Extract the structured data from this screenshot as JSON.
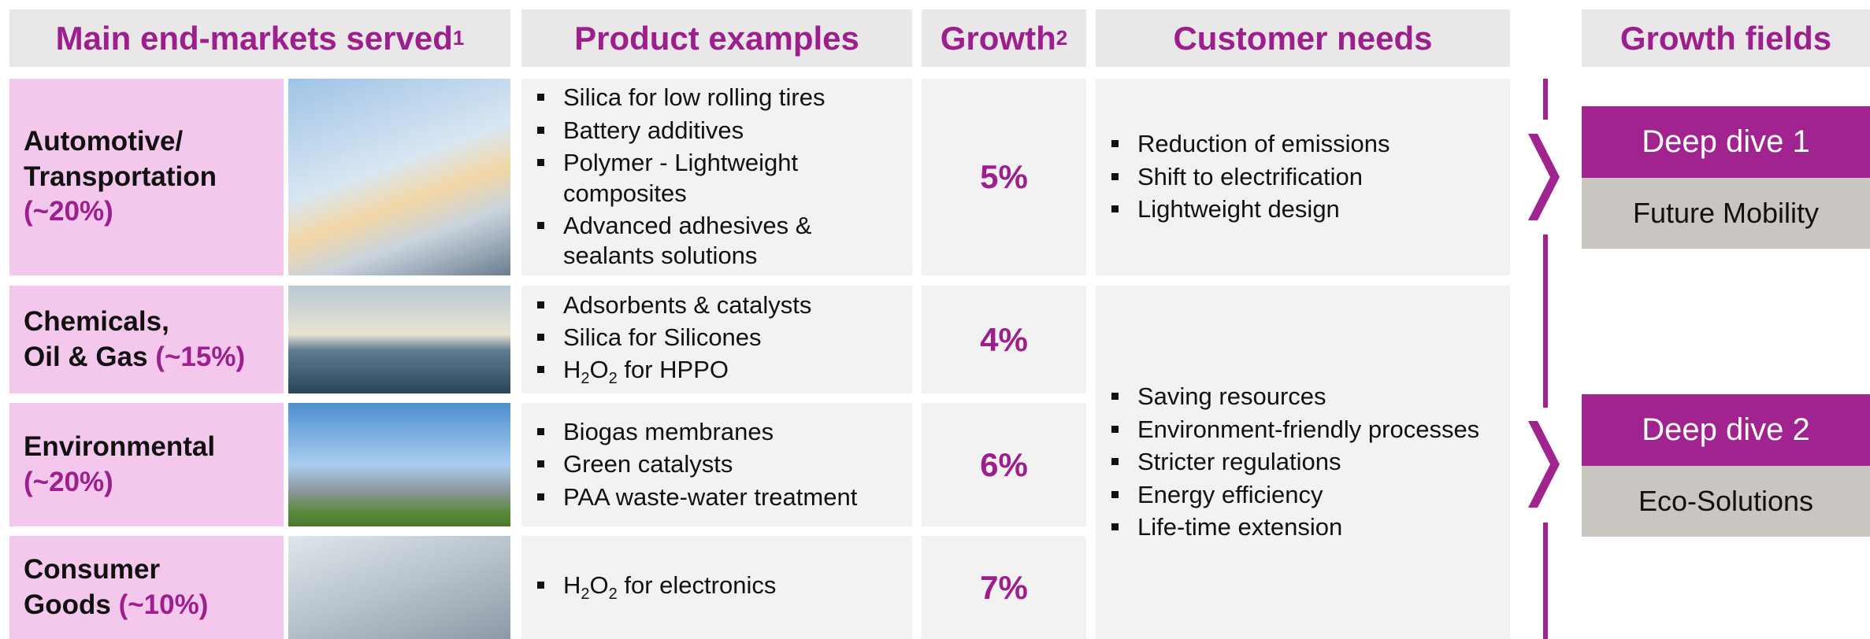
{
  "header": [
    {
      "text": "Main end-markets served",
      "sup": "1"
    },
    {
      "text": "Product examples"
    },
    {
      "text": "Growth",
      "sup": "2"
    },
    {
      "text": "Customer needs"
    },
    {
      "text": "Growth fields"
    }
  ],
  "rows": [
    {
      "name": [
        "Automotive/",
        "Transportation"
      ],
      "share": "(~20%)",
      "share_newline": true,
      "products": [
        [
          {
            "text": "Silica for low rolling tires"
          }
        ],
        [
          {
            "text": "Battery additives"
          }
        ],
        [
          {
            "text": "Polymer - Lightweight composites"
          }
        ],
        [
          {
            "text": "Advanced adhesives & sealants solutions"
          }
        ]
      ],
      "growth": "5%"
    },
    {
      "name": [
        "Chemicals,",
        "Oil & Gas"
      ],
      "share": "(~15%)",
      "share_newline": false,
      "products": [
        [
          {
            "text": "Adsorbents & catalysts"
          }
        ],
        [
          {
            "text": "Silica for Silicones"
          }
        ],
        [
          {
            "text": "H"
          },
          {
            "text": "2",
            "sub": true
          },
          {
            "text": "O"
          },
          {
            "text": "2",
            "sub": true
          },
          {
            "text": " for HPPO"
          }
        ]
      ],
      "growth": "4%"
    },
    {
      "name": [
        "Environmental"
      ],
      "share": "(~20%)",
      "share_newline": true,
      "products": [
        [
          {
            "text": "Biogas membranes"
          }
        ],
        [
          {
            "text": "Green catalysts"
          }
        ],
        [
          {
            "text": "PAA waste-water treatment"
          }
        ]
      ],
      "growth": "6%"
    },
    {
      "name": [
        "Consumer",
        "Goods"
      ],
      "share": "(~10%)",
      "share_newline": false,
      "products": [
        [
          {
            "text": "H"
          },
          {
            "text": "2",
            "sub": true
          },
          {
            "text": "O"
          },
          {
            "text": "2",
            "sub": true
          },
          {
            "text": " for electronics"
          }
        ]
      ],
      "growth": "7%"
    }
  ],
  "customer_needs": [
    [
      "Reduction of emissions",
      "Shift to electrification",
      "Lightweight design"
    ],
    [
      "Saving resources",
      "Environment-friendly processes",
      "Stricter regulations",
      "Energy efficiency",
      "Life-time extension"
    ]
  ],
  "growth_fields": [
    {
      "title": "Deep dive 1",
      "label": "Future Mobility"
    },
    {
      "title": "Deep dive 2",
      "label": "Eco-Solutions"
    }
  ]
}
